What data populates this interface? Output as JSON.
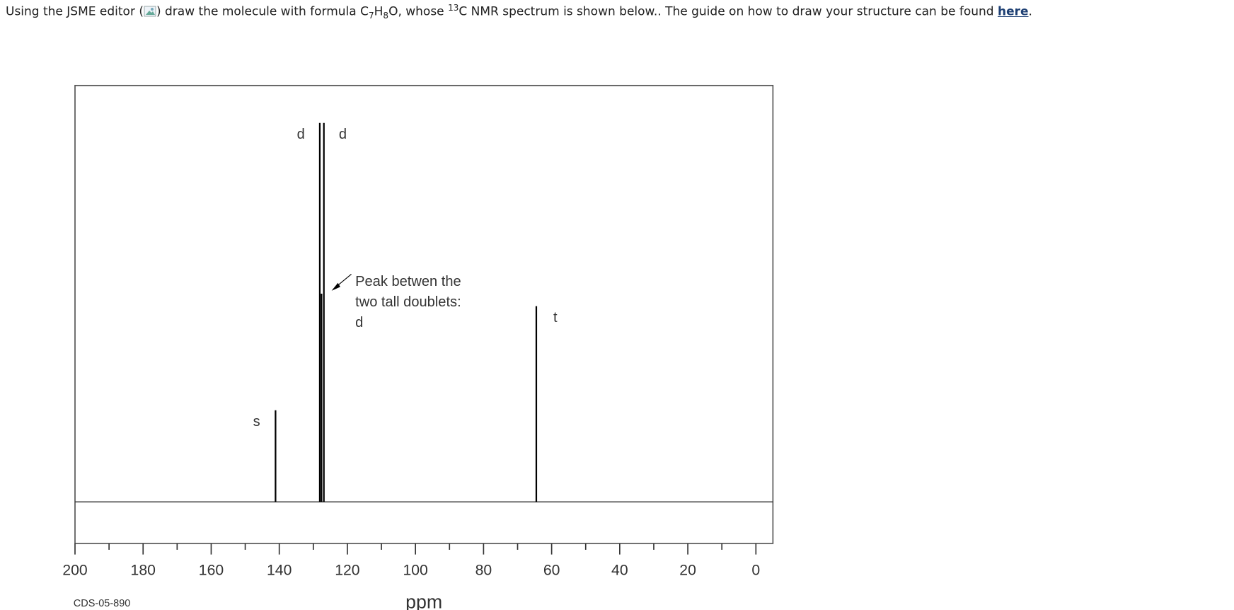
{
  "question": {
    "before_icon": "Using the JSME editor (",
    "after_icon": ") draw the molecule with formula C",
    "sub_1": "7",
    "mid_1": "H",
    "sub_2": "8",
    "mid_2": "O, whose ",
    "sup": "13",
    "rest": "C NMR spectrum is shown below.. The guide on how to draw your structure can be found ",
    "link": "here",
    "end": "."
  },
  "chart_data": {
    "type": "spectrum",
    "xlabel": "ppm",
    "note": "CDS-05-890",
    "xlim": [
      200,
      -5
    ],
    "ylim": [
      -10,
      100
    ],
    "xticks": [
      200,
      180,
      160,
      140,
      120,
      100,
      80,
      60,
      40,
      20,
      0
    ],
    "minor_xticks": [
      190,
      170,
      150,
      130,
      110,
      90,
      70,
      50,
      30,
      10
    ],
    "x": [
      141.1,
      128.1,
      127.6,
      126.9,
      64.5
    ],
    "values": [
      22,
      91,
      50,
      91,
      47
    ],
    "labels": [
      "s",
      "d",
      null,
      "d",
      "t"
    ],
    "color": "#000000",
    "annotation": [
      "Peak betwen the",
      "two tall doublets:",
      "d"
    ]
  }
}
